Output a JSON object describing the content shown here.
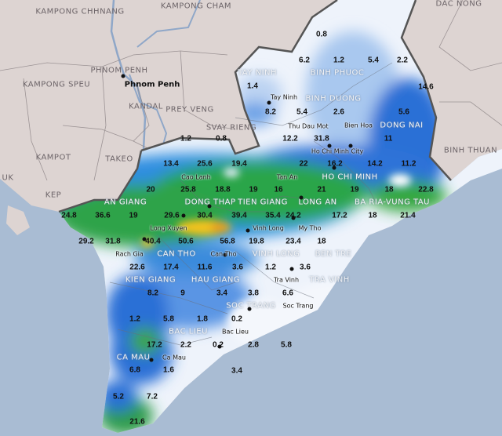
{
  "map": {
    "type": "rainfall map",
    "colors": {
      "sea": "#a9bcd3",
      "land": "#ddd4d2",
      "light_rain": "#e8f0fb",
      "blue": "#2f73d8",
      "green": "#2ea84a",
      "yellow": "#f2c21a",
      "orange": "#e79a1e",
      "border": "#555555"
    },
    "foreign_provinces": [
      "KAMPONG CHHNANG",
      "KAMPONG CHAM",
      "PHNOM PENH",
      "KAMPONG SPEU",
      "KANDAL",
      "PREY VENG",
      "SVAY RIENG",
      "KAMPOT",
      "TAKEO",
      "KEP",
      "UK",
      "DAC NONG",
      "BINH THUAN"
    ],
    "capital": "Phnom Penh",
    "provinces": [
      "TAY NINH",
      "BINH PHUOC",
      "BINH DUONG",
      "DONG NAI",
      "HO CHI MINH",
      "BA RIA-VUNG TAU",
      "LONG AN",
      "TIEN GIANG",
      "DONG THAP",
      "AN GIANG",
      "CAN THO",
      "VINH LONG",
      "BEN TRE",
      "TRA VINH",
      "KIEN GIANG",
      "HAU GIANG",
      "SOC TRANG",
      "BAC LIEU",
      "CA MAU"
    ],
    "cities": [
      "Tay Ninh",
      "Thu Dau Mot",
      "Bien Hoa",
      "Ho Chi Minh City",
      "Tan An",
      "My Tho",
      "Cao Lanh",
      "Long Xuyen",
      "Vinh Long",
      "Rach Gia",
      "Can Tho",
      "Tra Vinh",
      "Soc Trang",
      "Bac Lieu",
      "Ca Mau"
    ],
    "rainfall_values": [
      "0.8",
      "6.2",
      "1.2",
      "5.4",
      "2.2",
      "1.4",
      "14.6",
      "8.2",
      "5.4",
      "2.6",
      "5.6",
      "1.2",
      "0.8",
      "12.2",
      "31.8",
      "11",
      "13.4",
      "25.6",
      "19.4",
      "22",
      "16.2",
      "14.2",
      "11.2",
      "20",
      "25.8",
      "18.8",
      "19",
      "16",
      "21",
      "19",
      "18",
      "22.8",
      "24.8",
      "36.6",
      "19",
      "29.6",
      "30.4",
      "39.4",
      "35.4",
      "24.2",
      "17.2",
      "18",
      "21.4",
      "29.2",
      "31.8",
      "40.4",
      "50.6",
      "56.8",
      "19.8",
      "23.4",
      "18",
      "22.6",
      "17.4",
      "11.6",
      "3.6",
      "1.2",
      "3.6",
      "8.2",
      "9",
      "3.4",
      "3.8",
      "6.6",
      "1.2",
      "5.8",
      "1.8",
      "0.2",
      "17.2",
      "2.2",
      "0.2",
      "2.8",
      "5.8",
      "6.8",
      "1.6",
      "3.4",
      "5.2",
      "7.2",
      "21.6"
    ]
  }
}
